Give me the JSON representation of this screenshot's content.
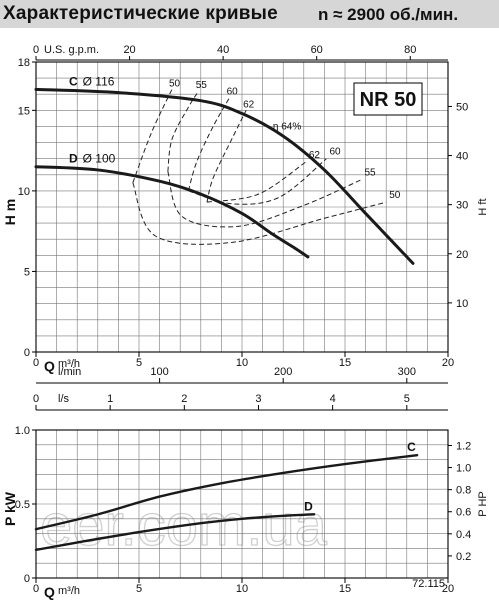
{
  "header": {
    "title": "Характеристические кривые",
    "subtitle": "n ≈ 2900  об./мин."
  },
  "colors": {
    "header_bg": "#d6d6d6",
    "curve": "#1a1a1a",
    "grid": "#777777"
  },
  "watermark": "eer.com.ua",
  "chart_data": [
    {
      "type": "line",
      "title": "NR 50",
      "xlabel": "Q m³/h",
      "ylabel": "H m",
      "y2label": "H ft",
      "xlim": [
        0,
        20
      ],
      "ylim": [
        0,
        18
      ],
      "y2lim": [
        0,
        59.05
      ],
      "x_ticks": [
        0,
        5,
        10,
        15,
        20
      ],
      "y_ticks": [
        0,
        5,
        10,
        15,
        18
      ],
      "y2_ticks": [
        10,
        20,
        30,
        40,
        50
      ],
      "top_axis": {
        "label": "U.S. g.p.m.",
        "ticks": [
          0,
          20,
          40,
          60,
          80
        ],
        "to_m3h": 0.2271
      },
      "secondary_axes": [
        {
          "label": "l/min",
          "ticks": [
            100,
            200,
            300
          ],
          "to_m3h": 0.06
        },
        {
          "label": "l/s",
          "ticks": [
            0,
            1,
            2,
            3,
            4,
            5
          ],
          "to_m3h": 3.6
        }
      ],
      "grid": true,
      "series": [
        {
          "name": "C",
          "label": "Ø 116",
          "x": [
            0,
            4,
            8,
            10,
            12,
            14,
            16,
            18.3
          ],
          "y": [
            16.3,
            16.1,
            15.6,
            14.8,
            13.4,
            11.3,
            8.6,
            5.5
          ]
        },
        {
          "name": "D",
          "label": "Ø 100",
          "x": [
            0,
            3,
            6,
            8,
            10,
            11.5,
            12.5,
            13.2
          ],
          "y": [
            11.5,
            11.3,
            10.6,
            9.8,
            8.6,
            7.3,
            6.5,
            5.9
          ]
        }
      ],
      "efficiency_label": "η 64%",
      "efficiency_contours": [
        {
          "label": "50",
          "x": [
            4.7,
            5.6,
            6.6
          ],
          "y": [
            10.5,
            13.6,
            16.3
          ]
        },
        {
          "label": "55",
          "x": [
            6.4,
            6.6,
            7.4,
            7.9
          ],
          "y": [
            11.2,
            13.2,
            15.2,
            16.2
          ]
        },
        {
          "label": "60",
          "x": [
            7.4,
            7.8,
            8.6,
            9.4
          ],
          "y": [
            10.0,
            11.8,
            14.0,
            15.8
          ]
        },
        {
          "label": "62",
          "x": [
            8.3,
            8.6,
            9.5,
            10.2
          ],
          "y": [
            9.3,
            10.8,
            13.2,
            15.0
          ]
        },
        {
          "label": "62",
          "x": [
            8.3,
            10.8,
            13.1
          ],
          "y": [
            9.3,
            9.8,
            11.8
          ]
        },
        {
          "label": "60",
          "x": [
            7.4,
            9.5,
            11.8,
            14.1
          ],
          "y": [
            10.0,
            9.2,
            9.6,
            12.0
          ]
        },
        {
          "label": "55",
          "x": [
            6.4,
            7.1,
            9.8,
            13.0,
            15.8
          ],
          "y": [
            11.2,
            8.4,
            7.8,
            9.1,
            10.7
          ]
        },
        {
          "label": "50",
          "x": [
            4.7,
            5.8,
            9.5,
            14.0,
            17.0
          ],
          "y": [
            10.5,
            7.2,
            6.8,
            8.3,
            9.3
          ]
        }
      ]
    },
    {
      "type": "line",
      "xlabel": "Q m³/h",
      "ylabel": "P kW",
      "y2label": "P HP",
      "xlim": [
        0,
        20
      ],
      "ylim": [
        0,
        1.0
      ],
      "y2lim": [
        0,
        1.34
      ],
      "x_ticks": [
        0,
        5,
        10,
        15,
        20
      ],
      "y_ticks": [
        0,
        0.5,
        1.0
      ],
      "y2_ticks": [
        0.2,
        0.4,
        0.6,
        0.8,
        1.0,
        1.2
      ],
      "tick_labels": [
        "0",
        "5",
        "10",
        "15",
        "20",
        "0",
        "0.5",
        "1.0",
        "0.2",
        "0.4",
        "0.6",
        "0.8",
        "1.0",
        "1.2"
      ],
      "grid": true,
      "annotation": "72.115",
      "series": [
        {
          "name": "C",
          "x": [
            0,
            3,
            6,
            9,
            12,
            15,
            18.5
          ],
          "y": [
            0.33,
            0.43,
            0.55,
            0.64,
            0.71,
            0.77,
            0.83
          ]
        },
        {
          "name": "D",
          "x": [
            0,
            2,
            5,
            8,
            10,
            12,
            13.5
          ],
          "y": [
            0.19,
            0.24,
            0.31,
            0.37,
            0.4,
            0.42,
            0.43
          ]
        }
      ]
    }
  ]
}
